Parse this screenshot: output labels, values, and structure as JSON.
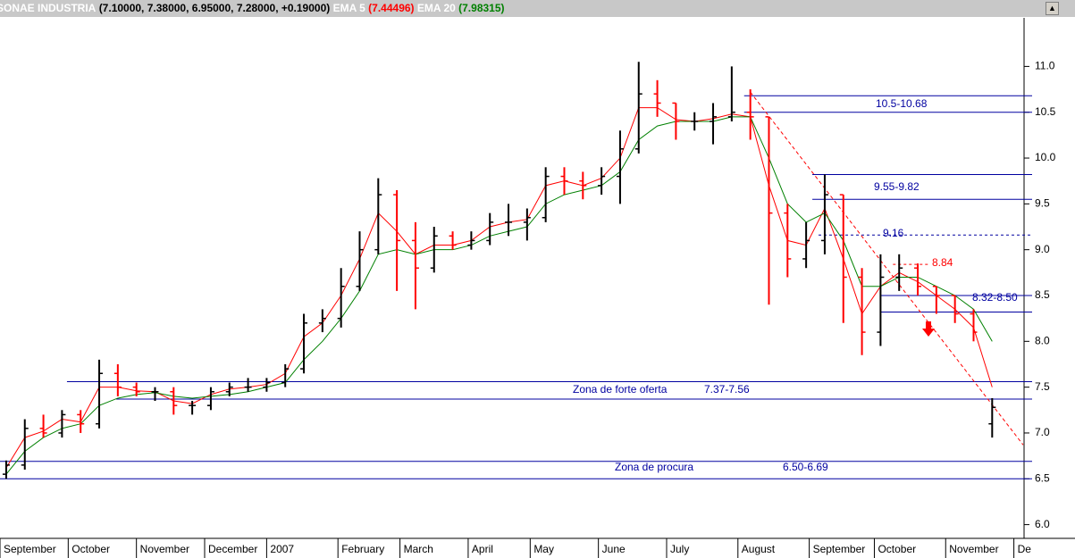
{
  "chart_data": {
    "type": "ohlc",
    "title": "SONAE INDUSTRIA",
    "title_values": "(7.10000, 7.38000, 6.95000, 7.28000, +0.19000)",
    "x": [
      2,
      8,
      14,
      20,
      26,
      32,
      38,
      44,
      50,
      56,
      62,
      68,
      74,
      80,
      86,
      92,
      98,
      104,
      110,
      116,
      122,
      128,
      134,
      140,
      146,
      152,
      158,
      164,
      170,
      176,
      182,
      188,
      194,
      200,
      206,
      212,
      218,
      224,
      230,
      236,
      242,
      248,
      254,
      260,
      266,
      272,
      278,
      284,
      290,
      296,
      302,
      308,
      314,
      320
    ],
    "open": [
      6.55,
      6.65,
      7.05,
      7.0,
      7.2,
      7.1,
      7.65,
      7.5,
      7.45,
      7.45,
      7.3,
      7.3,
      7.45,
      7.5,
      7.5,
      7.55,
      7.7,
      8.2,
      8.25,
      8.6,
      9.0,
      9.6,
      9.1,
      8.8,
      9.15,
      9.05,
      9.1,
      9.3,
      9.3,
      9.35,
      9.8,
      9.75,
      9.7,
      9.8,
      10.1,
      10.7,
      10.6,
      10.4,
      10.4,
      10.45,
      10.5,
      10.45,
      9.4,
      8.9,
      9.1,
      9.6,
      8.7,
      8.1,
      8.7,
      8.8,
      8.6,
      8.5,
      8.3,
      7.1
    ],
    "high": [
      6.7,
      7.15,
      7.2,
      7.25,
      7.25,
      7.8,
      7.75,
      7.55,
      7.5,
      7.5,
      7.35,
      7.5,
      7.55,
      7.6,
      7.6,
      7.75,
      8.3,
      8.35,
      8.8,
      9.2,
      9.78,
      9.65,
      9.3,
      9.25,
      9.2,
      9.2,
      9.4,
      9.5,
      9.45,
      9.9,
      9.9,
      9.85,
      9.9,
      10.3,
      11.05,
      10.85,
      10.6,
      10.5,
      10.6,
      11.0,
      10.75,
      10.45,
      9.5,
      9.3,
      9.82,
      9.6,
      8.8,
      8.95,
      8.95,
      8.85,
      8.6,
      8.5,
      8.35,
      7.38
    ],
    "low": [
      6.5,
      6.6,
      6.95,
      6.95,
      7.0,
      7.05,
      7.4,
      7.4,
      7.35,
      7.2,
      7.2,
      7.25,
      7.4,
      7.45,
      7.45,
      7.5,
      7.65,
      8.1,
      8.15,
      8.55,
      8.95,
      8.55,
      8.35,
      8.75,
      9.0,
      9.0,
      9.05,
      9.15,
      9.1,
      9.3,
      9.6,
      9.55,
      9.6,
      9.5,
      10.05,
      10.45,
      10.2,
      10.3,
      10.15,
      10.4,
      10.2,
      8.4,
      8.7,
      8.8,
      8.95,
      8.2,
      7.85,
      7.95,
      8.55,
      8.5,
      8.3,
      8.2,
      8.0,
      6.95
    ],
    "close": [
      6.65,
      7.05,
      7.0,
      7.2,
      7.1,
      7.65,
      7.5,
      7.45,
      7.45,
      7.3,
      7.3,
      7.45,
      7.5,
      7.5,
      7.55,
      7.7,
      8.2,
      8.25,
      8.6,
      9.0,
      9.6,
      9.1,
      8.8,
      9.15,
      9.05,
      9.1,
      9.3,
      9.3,
      9.35,
      9.8,
      9.75,
      9.7,
      9.8,
      10.1,
      10.7,
      10.6,
      10.4,
      10.4,
      10.45,
      10.5,
      10.45,
      9.4,
      8.9,
      9.1,
      9.6,
      8.7,
      8.1,
      8.7,
      8.8,
      8.6,
      8.5,
      8.3,
      8.1,
      7.28
    ],
    "up_color": "#000000",
    "down_color": "#ff0000",
    "series": [
      {
        "name": "EMA 5",
        "value_label": "(7.44496)",
        "color": "#ff0000",
        "values": [
          6.62,
          6.95,
          7.02,
          7.15,
          7.12,
          7.5,
          7.5,
          7.46,
          7.45,
          7.35,
          7.32,
          7.42,
          7.48,
          7.5,
          7.53,
          7.65,
          8.05,
          8.2,
          8.5,
          8.9,
          9.4,
          9.2,
          8.95,
          9.05,
          9.05,
          9.1,
          9.25,
          9.3,
          9.33,
          9.7,
          9.75,
          9.7,
          9.78,
          10.0,
          10.55,
          10.55,
          10.42,
          10.4,
          10.43,
          10.48,
          10.45,
          9.7,
          9.1,
          9.05,
          9.45,
          8.9,
          8.3,
          8.6,
          8.75,
          8.65,
          8.5,
          8.35,
          8.15,
          7.5
        ]
      },
      {
        "name": "EMA 20",
        "value_label": "(7.98315)",
        "color": "#008000",
        "values": [
          6.55,
          6.8,
          6.95,
          7.05,
          7.1,
          7.3,
          7.38,
          7.42,
          7.44,
          7.4,
          7.38,
          7.4,
          7.42,
          7.45,
          7.5,
          7.55,
          7.8,
          8.0,
          8.25,
          8.55,
          8.95,
          9.0,
          8.95,
          9.0,
          9.0,
          9.05,
          9.15,
          9.2,
          9.25,
          9.5,
          9.6,
          9.65,
          9.7,
          9.85,
          10.2,
          10.35,
          10.4,
          10.4,
          10.4,
          10.45,
          10.45,
          10.0,
          9.5,
          9.3,
          9.4,
          9.1,
          8.6,
          8.6,
          8.7,
          8.7,
          8.6,
          8.5,
          8.35,
          8.0
        ]
      }
    ],
    "xlim": [
      0,
      330
    ],
    "xticks": [
      {
        "value": 0,
        "label": "September"
      },
      {
        "value": 22,
        "label": "October"
      },
      {
        "value": 44,
        "label": "November"
      },
      {
        "value": 66,
        "label": "December"
      },
      {
        "value": 86,
        "label": "2007"
      },
      {
        "value": 109,
        "label": "February"
      },
      {
        "value": 129,
        "label": "March"
      },
      {
        "value": 151,
        "label": "April"
      },
      {
        "value": 171,
        "label": "May"
      },
      {
        "value": 193,
        "label": "June"
      },
      {
        "value": 215,
        "label": "July"
      },
      {
        "value": 238,
        "label": "August"
      },
      {
        "value": 261,
        "label": "September"
      },
      {
        "value": 282,
        "label": "October"
      },
      {
        "value": 305,
        "label": "November"
      },
      {
        "value": 327,
        "label": "De"
      }
    ],
    "ylim": [
      5.85,
      11.53
    ],
    "yticks": [
      {
        "value": 6,
        "label": "6.0"
      },
      6.5,
      {
        "value": 7,
        "label": "7.0"
      },
      7.5,
      {
        "value": 8,
        "label": "8.0"
      },
      8.5,
      {
        "value": 9,
        "label": "9.0"
      },
      9.5,
      {
        "value": 10,
        "label": "10.0"
      },
      10.5,
      {
        "value": 11,
        "label": "11.0"
      }
    ],
    "levels": [
      {
        "value": 10.68,
        "from": 240,
        "color": "#0000a0",
        "style": "solid"
      },
      {
        "value": 10.5,
        "from": 240,
        "color": "#0000a0",
        "style": "solid"
      },
      {
        "value": 9.82,
        "from": 262,
        "color": "#0000a0",
        "style": "solid"
      },
      {
        "value": 9.55,
        "from": 262,
        "color": "#0000a0",
        "style": "solid"
      },
      {
        "value": 9.16,
        "from": 264,
        "color": "#0000a0",
        "style": "dashed"
      },
      {
        "value": 8.84,
        "from": 288,
        "to": 300,
        "color": "#ff0000",
        "style": "dashed"
      },
      {
        "value": 8.5,
        "from": 284,
        "color": "#0000a0",
        "style": "solid"
      },
      {
        "value": 8.32,
        "from": 284,
        "color": "#0000a0",
        "style": "solid"
      },
      {
        "value": 7.56,
        "from": 21.6,
        "color": "#0000a0",
        "style": "solid"
      },
      {
        "value": 7.37,
        "from": 37.5,
        "color": "#0000a0",
        "style": "solid"
      },
      {
        "value": 6.69,
        "from": 0,
        "color": "#0000a0",
        "style": "solid"
      },
      {
        "value": 6.5,
        "from": 0,
        "color": "#0000a0",
        "style": "solid"
      }
    ],
    "trendline": {
      "x": [
        242,
        330
      ],
      "y": [
        10.72,
        6.87
      ],
      "color": "#ff0000"
    },
    "annotations": [
      {
        "text": "10.5-10.68",
        "color": "#0000a0"
      },
      {
        "text": "9.55-9.82",
        "color": "#0000a0"
      },
      {
        "text": "9.16",
        "color": "#0000a0"
      },
      {
        "text": "8.84",
        "color": "#ff0000"
      },
      {
        "text": "8.32-8.50",
        "color": "#0000a0"
      },
      {
        "text": "Zona de forte oferta",
        "color": "#0000a0"
      },
      {
        "text": "7.37-7.56",
        "color": "#0000a0"
      },
      {
        "text": "Zona de procura",
        "color": "#0000a0"
      },
      {
        "text": "6.50-6.69",
        "color": "#0000a0"
      }
    ]
  }
}
